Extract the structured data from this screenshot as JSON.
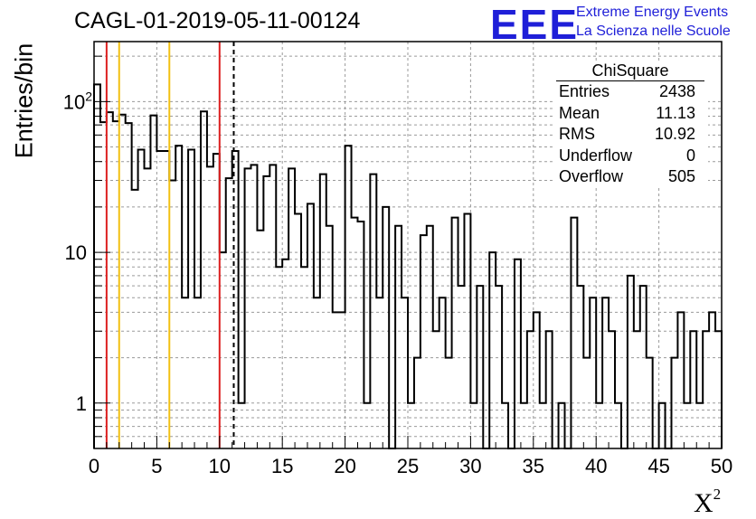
{
  "title": "CAGL-01-2019-05-11-00124",
  "logo": {
    "letters": "EEE",
    "line1": "Extreme Energy Events",
    "line2": "La Scienza nelle Scuole",
    "color": "#1f1fd8"
  },
  "stats": {
    "title": "ChiSquare",
    "rows": [
      {
        "label": "Entries",
        "value": "2438"
      },
      {
        "label": "Mean",
        "value": "11.13"
      },
      {
        "label": "RMS",
        "value": "10.92"
      },
      {
        "label": "Underflow",
        "value": "0"
      },
      {
        "label": "Overflow",
        "value": "505"
      }
    ]
  },
  "chart_data": {
    "type": "bar",
    "histogram": true,
    "title": "CAGL-01-2019-05-11-00124",
    "xlabel": "X²",
    "ylabel": "Entries/bin",
    "xlim": [
      0,
      50
    ],
    "ylim": [
      0.5,
      250
    ],
    "y_scale": "log",
    "grid": true,
    "bin_width": 0.5,
    "x_ticks": [
      0,
      5,
      10,
      15,
      20,
      25,
      30,
      35,
      40,
      45,
      50
    ],
    "x_tick_labels": [
      "0",
      "5",
      "10",
      "15",
      "20",
      "25",
      "30",
      "35",
      "40",
      "45",
      "50"
    ],
    "y_ticks": [
      1,
      10,
      100
    ],
    "y_tick_labels": [
      "1",
      "10",
      "10²"
    ],
    "values": [
      130,
      73,
      85,
      74,
      82,
      72,
      26,
      48,
      36,
      81,
      47,
      47,
      30,
      51,
      5,
      48,
      5,
      86,
      37,
      45,
      10,
      31,
      47,
      1,
      36,
      38,
      14,
      32,
      38,
      8,
      9,
      36,
      18,
      8,
      21,
      5,
      33,
      15,
      4,
      4,
      51,
      17,
      16,
      1,
      33,
      5,
      20,
      0.3,
      15,
      5,
      1,
      2,
      13,
      15,
      3,
      5,
      2,
      17,
      6,
      18,
      1,
      6,
      0.3,
      10,
      6,
      1,
      0.3,
      9,
      1,
      3,
      4,
      1,
      3,
      0.3,
      1,
      0.3,
      17,
      6,
      2,
      5,
      1,
      5,
      3,
      1,
      0.3,
      7,
      3,
      6,
      2,
      0.3,
      1,
      0.3,
      2,
      4,
      1,
      3,
      1,
      3,
      4,
      3
    ],
    "vertical_lines": [
      {
        "x": 1,
        "color": "#dd2020",
        "style": "solid"
      },
      {
        "x": 2,
        "color": "#f2c012",
        "style": "solid"
      },
      {
        "x": 6,
        "color": "#f2c012",
        "style": "solid"
      },
      {
        "x": 10,
        "color": "#dd2020",
        "style": "solid"
      },
      {
        "x": 11.13,
        "color": "#000000",
        "style": "dashed"
      }
    ]
  }
}
